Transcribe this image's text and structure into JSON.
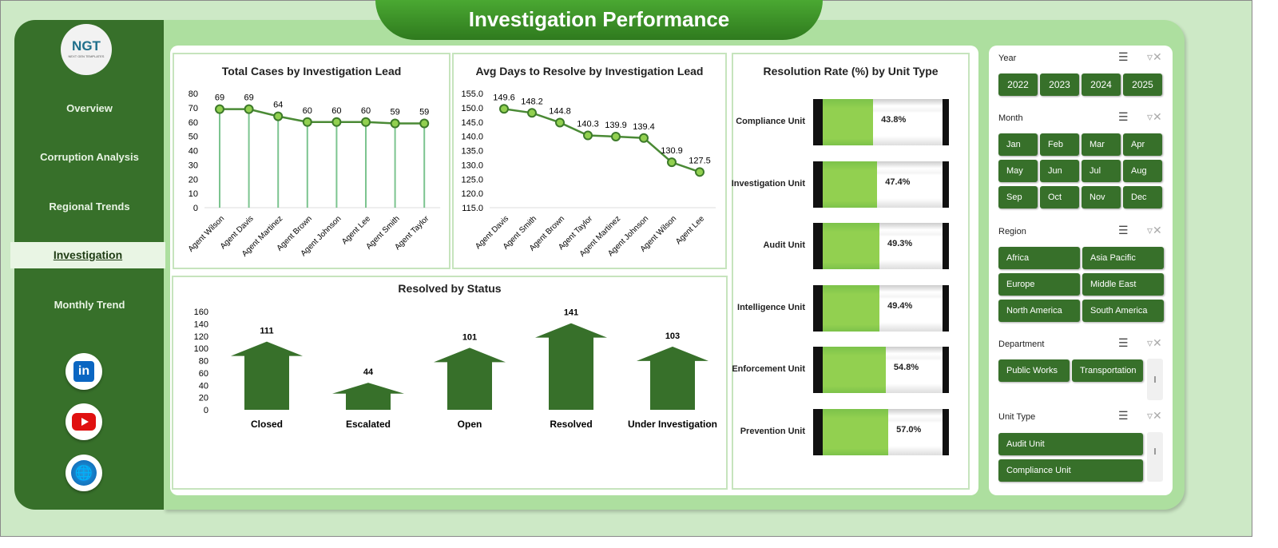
{
  "title": "Investigation Performance",
  "logo": {
    "text": "NGT",
    "sub": "NEXT GEN TEMPLATES"
  },
  "nav": [
    "Overview",
    "Corruption Analysis",
    "Regional Trends",
    "Investigation",
    "Monthly Trend"
  ],
  "nav_selected": "Investigation",
  "social": [
    "linkedin-icon",
    "youtube-icon",
    "globe-icon"
  ],
  "colors": {
    "dark_green": "#37702a",
    "light_green": "#92d050",
    "bg": "#addf9f"
  },
  "slicers": {
    "year": {
      "label": "Year",
      "items": [
        "2022",
        "2023",
        "2024",
        "2025"
      ]
    },
    "month": {
      "label": "Month",
      "items": [
        "Jan",
        "Feb",
        "Mar",
        "Apr",
        "May",
        "Jun",
        "Jul",
        "Aug",
        "Sep",
        "Oct",
        "Nov",
        "Dec"
      ]
    },
    "region": {
      "label": "Region",
      "items": [
        "Africa",
        "Asia Pacific",
        "Europe",
        "Middle East",
        "North America",
        "South America"
      ]
    },
    "department": {
      "label": "Department",
      "items": [
        "Public Works",
        "Transportation"
      ]
    },
    "unit_type": {
      "label": "Unit Type",
      "items": [
        "Audit Unit",
        "Compliance Unit"
      ]
    }
  },
  "chart_data": [
    {
      "type": "line",
      "title": "Total Cases by Investigation  Lead",
      "categories": [
        "Agent Wilson",
        "Agent Davis",
        "Agent Martinez",
        "Agent Brown",
        "Agent Johnson",
        "Agent Lee",
        "Agent Smith",
        "Agent Taylor"
      ],
      "values": [
        69,
        69,
        64,
        60,
        60,
        60,
        59,
        59
      ],
      "ylim": [
        0,
        80
      ],
      "yticks": [
        0,
        10,
        20,
        30,
        40,
        50,
        60,
        70,
        80
      ]
    },
    {
      "type": "line",
      "title": "Avg Days to Resolve by Investigation Lead",
      "categories": [
        "Agent Davis",
        "Agent Smith",
        "Agent Brown",
        "Agent Taylor",
        "Agent Martinez",
        "Agent Johnson",
        "Agent Wilson",
        "Agent Lee"
      ],
      "values": [
        149.6,
        148.2,
        144.8,
        140.3,
        139.9,
        139.4,
        130.9,
        127.5
      ],
      "ylim": [
        115,
        155
      ],
      "yticks": [
        "115.0",
        "120.0",
        "125.0",
        "130.0",
        "135.0",
        "140.0",
        "145.0",
        "150.0",
        "155.0"
      ]
    },
    {
      "type": "bar",
      "title": "Resolution Rate (%) by Unit Type",
      "categories": [
        "Compliance Unit",
        "Investigation Unit",
        "Audit Unit",
        "Intelligence Unit",
        "Enforcement Unit",
        "Prevention Unit"
      ],
      "values": [
        43.8,
        47.4,
        49.3,
        49.4,
        54.8,
        57.0
      ],
      "labels": [
        "43.8%",
        "47.4%",
        "49.3%",
        "49.4%",
        "54.8%",
        "57.0%"
      ],
      "ylim": [
        0,
        100
      ]
    },
    {
      "type": "bar",
      "title": "Resolved by Status",
      "categories": [
        "Closed",
        "Escalated",
        "Open",
        "Resolved",
        "Under Investigation"
      ],
      "values": [
        111,
        44,
        101,
        141,
        103
      ],
      "ylim": [
        0,
        160
      ],
      "yticks": [
        0,
        20,
        40,
        60,
        80,
        100,
        120,
        140,
        160
      ]
    }
  ]
}
